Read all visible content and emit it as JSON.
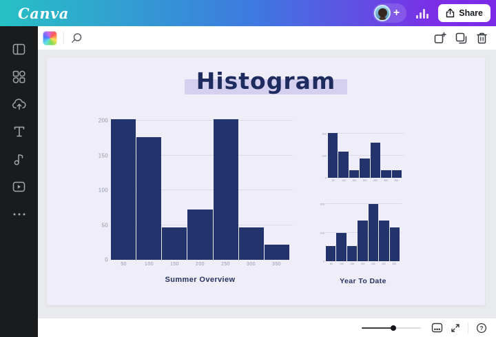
{
  "header": {
    "logo": "Canva",
    "plus_label": "+",
    "share_label": "Share"
  },
  "sidebar": {
    "items": [
      {
        "icon": "design-icon"
      },
      {
        "icon": "elements-icon"
      },
      {
        "icon": "uploads-icon"
      },
      {
        "icon": "text-icon"
      },
      {
        "icon": "audio-icon"
      },
      {
        "icon": "video-icon"
      },
      {
        "icon": "more-icon"
      }
    ]
  },
  "toolbar": {
    "left_icons": [
      "page-color-swatch",
      "animate-icon"
    ],
    "right_icons": [
      "add-page-icon",
      "duplicate-page-icon",
      "delete-page-icon"
    ]
  },
  "canvas": {
    "title": "Histogram"
  },
  "chart_data": [
    {
      "type": "bar",
      "caption": "Summer Overview",
      "categories": [
        "50",
        "100",
        "150",
        "200",
        "250",
        "300",
        "350"
      ],
      "values": [
        202,
        176,
        47,
        72,
        202,
        47,
        22
      ],
      "y_ticks": [
        0,
        50,
        100,
        150,
        200
      ],
      "ylim": [
        0,
        205
      ],
      "xlabel": "",
      "ylabel": "",
      "grid": true,
      "legend": false,
      "bar_color": "#22346b"
    },
    {
      "type": "bar",
      "caption": "",
      "categories": [
        "50",
        "100",
        "150",
        "200",
        "250",
        "300",
        "350"
      ],
      "values": [
        202,
        120,
        33,
        87,
        160,
        33,
        33
      ],
      "y_ticks": [
        0,
        100,
        200
      ],
      "ylim": [
        0,
        212
      ],
      "xlabel": "",
      "ylabel": "",
      "grid": true,
      "legend": false,
      "bar_color": "#22346b"
    },
    {
      "type": "bar",
      "caption": "Year To Date",
      "categories": [
        "50",
        "100",
        "150",
        "200",
        "250",
        "300",
        "350"
      ],
      "values": [
        53,
        99,
        53,
        142,
        200,
        142,
        119
      ],
      "y_ticks": [
        0,
        100,
        200
      ],
      "ylim": [
        0,
        205
      ],
      "xlabel": "",
      "ylabel": "",
      "grid": true,
      "legend": false,
      "bar_color": "#22346b"
    }
  ],
  "bottombar": {
    "icons": [
      "zoom-slider",
      "grid-view-icon",
      "fullscreen-icon",
      "help-icon"
    ]
  },
  "colors": {
    "topbar_gradient": [
      "#27c1c4",
      "#3e78e0",
      "#7d2ae8"
    ],
    "sidebar_bg": "#1a1b1d",
    "workspace_bg": "#e9eaee",
    "page_bg": "#efeef8",
    "bar": "#22346b",
    "title_text": "#1d2b5e",
    "title_highlight": "#d5d0f0",
    "axis_text": "#9095ac"
  }
}
